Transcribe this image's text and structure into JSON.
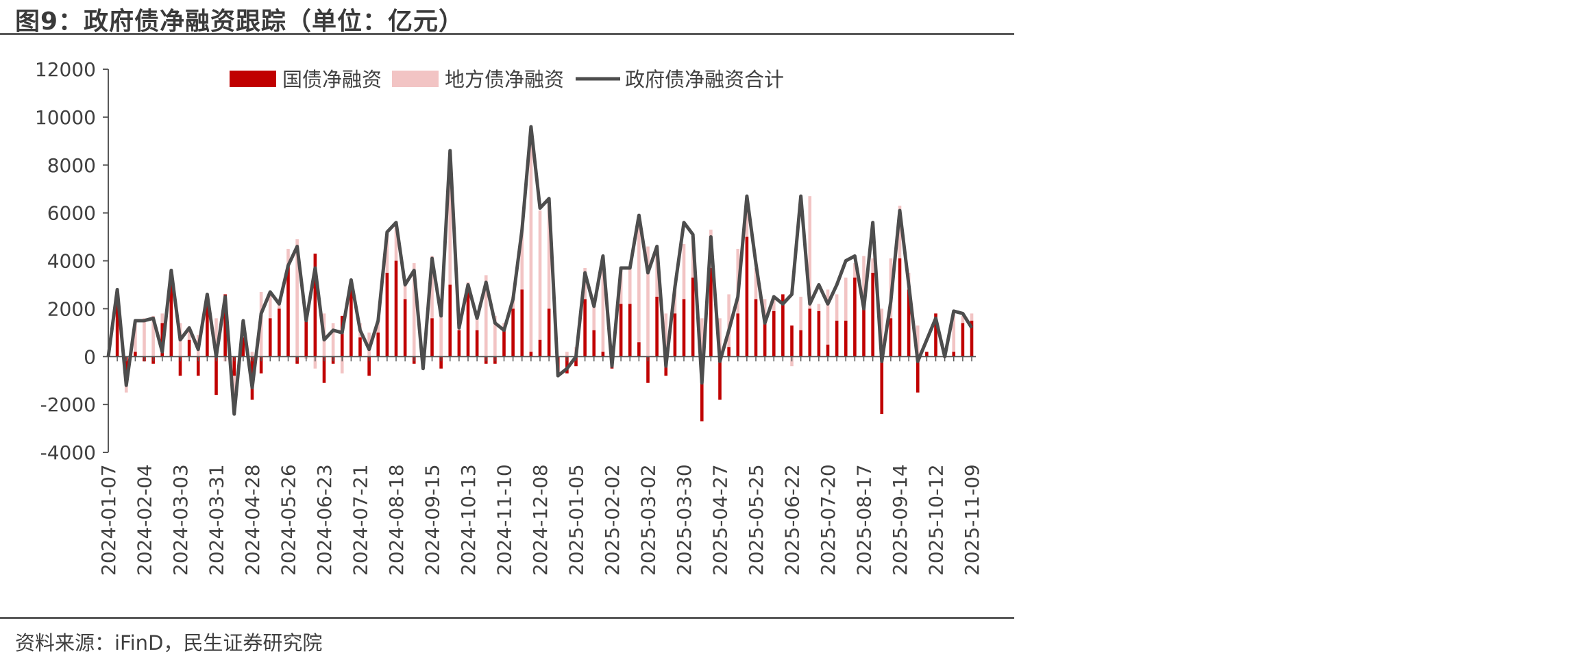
{
  "header": {
    "title": "图9：政府债净融资跟踪（单位：亿元）"
  },
  "footer": {
    "source": "资料来源：iFinD，民生证券研究院"
  },
  "colors": {
    "national": "#C00000",
    "local": "#F2C4C4",
    "total": "#4D4D4D",
    "rule": "#595959"
  },
  "chart_data": {
    "type": "bar",
    "title": "",
    "xlabel": "",
    "ylabel": "",
    "ylim": [
      -4000,
      12000
    ],
    "yticks": [
      "12000",
      "10000",
      "8000",
      "6000",
      "4000",
      "2000",
      "0",
      "-2000",
      "-4000"
    ],
    "xtick_labels": [
      "2024-01-07",
      "2024-02-04",
      "2024-03-03",
      "2024-03-31",
      "2024-04-28",
      "2024-05-26",
      "2024-06-23",
      "2024-07-21",
      "2024-08-18",
      "2024-09-15",
      "2024-10-13",
      "2024-11-10",
      "2024-12-08",
      "2025-01-05",
      "2025-02-02",
      "2025-03-02",
      "2025-03-30",
      "2025-04-27",
      "2025-05-25",
      "2025-06-22",
      "2025-07-20",
      "2025-08-17",
      "2025-09-14",
      "2025-10-12",
      "2025-11-09"
    ],
    "legend": {
      "position": "top",
      "items": [
        "国债净融资",
        "地方债净融资",
        "政府债净融资合计"
      ]
    },
    "series": [
      {
        "name": "国债净融资",
        "kind": "bar",
        "values": [
          0,
          2400,
          -1200,
          200,
          -200,
          -300,
          1400,
          3000,
          -800,
          700,
          -800,
          2300,
          -1600,
          2600,
          -800,
          800,
          -1800,
          -700,
          1600,
          2000,
          3800,
          -300,
          1600,
          4300,
          -1100,
          -300,
          1700,
          2900,
          800,
          -800,
          1000,
          3500,
          4000,
          2400,
          -300,
          -500,
          1600,
          -500,
          3000,
          1100,
          2800,
          1100,
          -300,
          -300,
          1100,
          2000,
          2800,
          200,
          700,
          2000,
          -800,
          -700,
          -400,
          2400,
          1100,
          200,
          -500,
          2200,
          2200,
          600,
          -1100,
          2500,
          -800,
          1800,
          2400,
          3300,
          -2700,
          3700,
          -1800,
          400,
          1800,
          5000,
          2400,
          1400,
          1900,
          2600,
          1300,
          1100,
          2000,
          1900,
          500,
          1500,
          1500,
          3300,
          2000,
          3500,
          -2400,
          1600,
          4100,
          2800,
          -1500,
          200,
          1800,
          200,
          200,
          1400,
          1500
        ]
      },
      {
        "name": "地方债净融资",
        "kind": "bar",
        "values": [
          0,
          400,
          -300,
          1300,
          1600,
          1700,
          400,
          500,
          1400,
          400,
          900,
          200,
          1600,
          -200,
          -1600,
          700,
          200,
          2700,
          1100,
          200,
          700,
          4900,
          -100,
          -500,
          1800,
          1400,
          -700,
          200,
          600,
          1000,
          500,
          1700,
          1500,
          600,
          3900,
          0,
          2600,
          2100,
          5500,
          100,
          300,
          500,
          3400,
          1700,
          300,
          500,
          2500,
          9400,
          5400,
          4600,
          0,
          200,
          400,
          1300,
          1000,
          4000,
          0,
          1500,
          1500,
          5300,
          4600,
          2100,
          1800,
          1100,
          2300,
          1800,
          1600,
          1600,
          1600,
          2200,
          2700,
          1700,
          1300,
          1000,
          600,
          0,
          -400,
          1400,
          4700,
          300,
          2300,
          1100,
          1800,
          600,
          2200,
          600,
          2000,
          2500,
          2200,
          700,
          1300,
          0,
          0,
          0,
          1700,
          300,
          300
        ]
      },
      {
        "name": "政府债净融资合计",
        "kind": "line",
        "values": [
          0,
          2800,
          -1200,
          1500,
          1500,
          1600,
          200,
          3600,
          700,
          1200,
          300,
          2600,
          0,
          2500,
          -2400,
          1500,
          -1300,
          1800,
          2700,
          2200,
          3800,
          4600,
          1500,
          3700,
          700,
          1100,
          1000,
          3200,
          1100,
          300,
          1500,
          5200,
          5600,
          3000,
          3600,
          -500,
          4100,
          1700,
          8600,
          1200,
          3000,
          1600,
          3100,
          1400,
          1100,
          2400,
          5300,
          9600,
          6200,
          6600,
          -800,
          -500,
          0,
          3500,
          2100,
          4200,
          -400,
          3700,
          3700,
          5900,
          3500,
          4600,
          -400,
          2900,
          5600,
          5100,
          -1100,
          5000,
          -200,
          1100,
          2500,
          6700,
          3900,
          1400,
          2500,
          2200,
          2600,
          6700,
          2200,
          3000,
          2200,
          3000,
          4000,
          4200,
          2000,
          5600,
          -200,
          2300,
          6100,
          3000,
          -200,
          700,
          1600,
          0,
          1900,
          1800,
          1200
        ]
      }
    ]
  }
}
